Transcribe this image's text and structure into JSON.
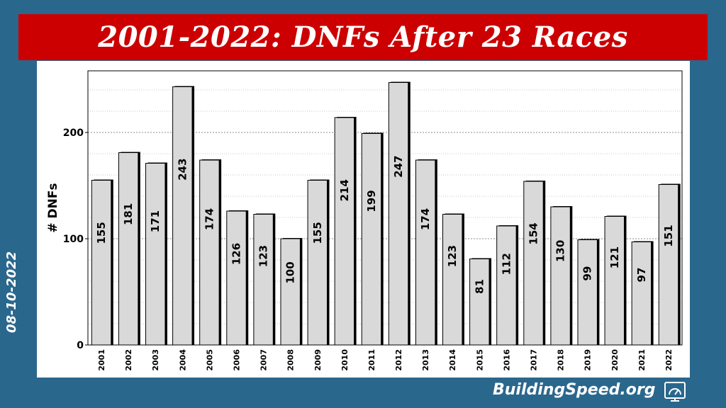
{
  "title": "2001-2022: DNFs After 23 Races",
  "side_date": "08-10-2022",
  "brand": "BuildingSpeed.org",
  "brand_icon": "speedometer-screen-icon",
  "colors": {
    "background": "#2a678d",
    "title_bar": "#cc0000",
    "bar_fill": "#d9d9d9",
    "bar_shadow": "#000000"
  },
  "chart_data": {
    "type": "bar",
    "categories": [
      "2001",
      "2002",
      "2003",
      "2004",
      "2005",
      "2006",
      "2007",
      "2008",
      "2009",
      "2010",
      "2011",
      "2012",
      "2013",
      "2014",
      "2015",
      "2016",
      "2017",
      "2018",
      "2019",
      "2020",
      "2021",
      "2022"
    ],
    "values": [
      155,
      181,
      171,
      243,
      174,
      126,
      123,
      100,
      155,
      214,
      199,
      247,
      174,
      123,
      81,
      112,
      154,
      130,
      99,
      121,
      97,
      151
    ],
    "value_labels": [
      "155",
      "181",
      "171",
      "243",
      "174",
      "126",
      "123",
      "100",
      "155",
      "214",
      "199",
      "247",
      "174",
      "123",
      "81",
      "112",
      "154",
      "130",
      "99",
      "121",
      "97",
      "151"
    ],
    "ylabel": "# DNFs",
    "xlabel": "",
    "ylim": [
      0,
      258
    ],
    "yticks": [
      0,
      100,
      200
    ],
    "ytick_labels": [
      "0",
      "100",
      "200"
    ],
    "grid": true,
    "legend": "none"
  }
}
